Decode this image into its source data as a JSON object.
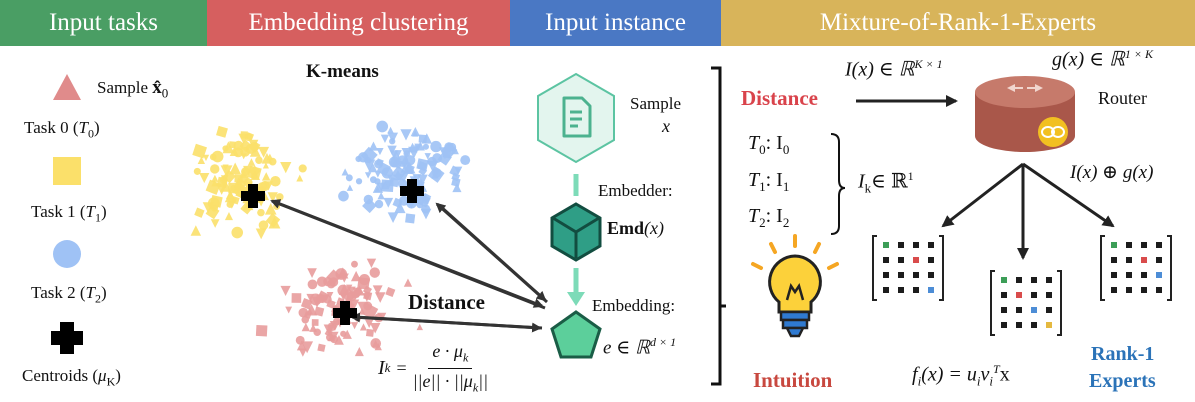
{
  "headers": [
    {
      "label": "Input tasks",
      "color": "#4a9e64"
    },
    {
      "label": "Embedding clustering",
      "color": "#d65f5f"
    },
    {
      "label": "Input instance",
      "color": "#4a78c4"
    },
    {
      "label": "Mixture-of-Rank-1-Experts",
      "color": "#d8b45a"
    }
  ],
  "legend": {
    "sample_prefix": "Sample ",
    "sample_symbol": "x̂",
    "sample_sub": "0",
    "task0_prefix": "Task 0 (",
    "task0_var": "T",
    "task0_sub": "0",
    "task0_suffix": ")",
    "task1_prefix": "Task 1 (",
    "task1_var": "T",
    "task1_sub": "1",
    "task1_suffix": ")",
    "task2_prefix": "Task 2 (",
    "task2_var": "T",
    "task2_sub": "2",
    "task2_suffix": ")",
    "centroid_prefix": "Centroids (",
    "centroid_var": "μ",
    "centroid_sub": "K",
    "centroid_suffix": ")",
    "colors": {
      "task0": "#fbe06a",
      "task1": "#9fc2f5",
      "task2": "#e89c9c",
      "sample": "#e08b8b",
      "centroid": "#000000"
    }
  },
  "clustering": {
    "title": "K-means",
    "distance_label": "Distance",
    "formula_lhs": "I",
    "formula_lhs_sub": "k",
    "formula_eq": "=",
    "formula_num": "e · μ",
    "formula_num_sub": "k",
    "formula_den": "||e|| · ||μ",
    "formula_den_sub": "k",
    "formula_den_tail": "||"
  },
  "instance": {
    "sample_label": "Sample",
    "sample_var": "x",
    "embedder_label": "Embedder:",
    "emd_text": "Emd",
    "emd_arg": "(x)",
    "embedding_label": "Embedding:",
    "embedding_formula": "e ∈ ℝ",
    "embedding_sup": "d × 1"
  },
  "mixture": {
    "distance_title": "Distance",
    "ix_label": "I(x) ∈ ℝ",
    "ix_sup": "K × 1",
    "gx_label": "g(x) ∈ ℝ",
    "gx_sup": "1 × K",
    "router_label": "Router",
    "rows": [
      {
        "t": "T",
        "sub": "0",
        "val": ": I",
        "valsub": "0"
      },
      {
        "t": "T",
        "sub": "1",
        "val": ": I",
        "valsub": "1"
      },
      {
        "t": "T",
        "sub": "2",
        "val": ": I",
        "valsub": "2"
      }
    ],
    "ik_label": "I",
    "ik_sub": "k",
    "ik_tail": "∈ ℝ",
    "ik_sup": "1",
    "combine_label": "I(x) ⊕ g(x)",
    "intuition": "Intuition",
    "fi_label": "f",
    "fi_sub": "i",
    "fi_mid": "(x) = u",
    "fi_sub2": "i",
    "fi_v": "v",
    "fi_sub3": "i",
    "fi_sup": "T",
    "fi_tail": "x",
    "experts_line1": "Rank-1",
    "experts_line2": "Experts",
    "colors": {
      "distance": "#d9434b",
      "intuition": "#c8483f",
      "experts": "#2b73b8",
      "router": "#b5665a",
      "dot": "#1c1c1c",
      "green": "#3c9e57",
      "red": "#d94c4c",
      "blue": "#4d8dd6",
      "yellow": "#e5b940"
    }
  }
}
